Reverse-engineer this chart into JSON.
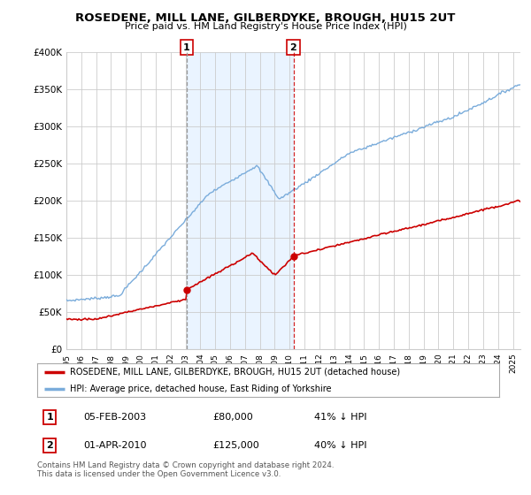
{
  "title": "ROSEDENE, MILL LANE, GILBERDYKE, BROUGH, HU15 2UT",
  "subtitle": "Price paid vs. HM Land Registry's House Price Index (HPI)",
  "legend_line1": "ROSEDENE, MILL LANE, GILBERDYKE, BROUGH, HU15 2UT (detached house)",
  "legend_line2": "HPI: Average price, detached house, East Riding of Yorkshire",
  "transaction1_label": "1",
  "transaction1_date": "05-FEB-2003",
  "transaction1_price": "£80,000",
  "transaction1_hpi": "41% ↓ HPI",
  "transaction2_label": "2",
  "transaction2_date": "01-APR-2010",
  "transaction2_price": "£125,000",
  "transaction2_hpi": "40% ↓ HPI",
  "footer": "Contains HM Land Registry data © Crown copyright and database right 2024.\nThis data is licensed under the Open Government Licence v3.0.",
  "ylim": [
    0,
    400000
  ],
  "yticks": [
    0,
    50000,
    100000,
    150000,
    200000,
    250000,
    300000,
    350000,
    400000
  ],
  "ytick_labels": [
    "£0",
    "£50K",
    "£100K",
    "£150K",
    "£200K",
    "£250K",
    "£300K",
    "£350K",
    "£400K"
  ],
  "red_color": "#cc0000",
  "blue_color": "#7aacdb",
  "blue_fill_color": "#ddeeff",
  "background_color": "#ffffff",
  "grid_color": "#cccccc",
  "transaction1_x": 2003.08,
  "transaction2_x": 2010.25,
  "xlim_start": 1995,
  "xlim_end": 2025.5
}
